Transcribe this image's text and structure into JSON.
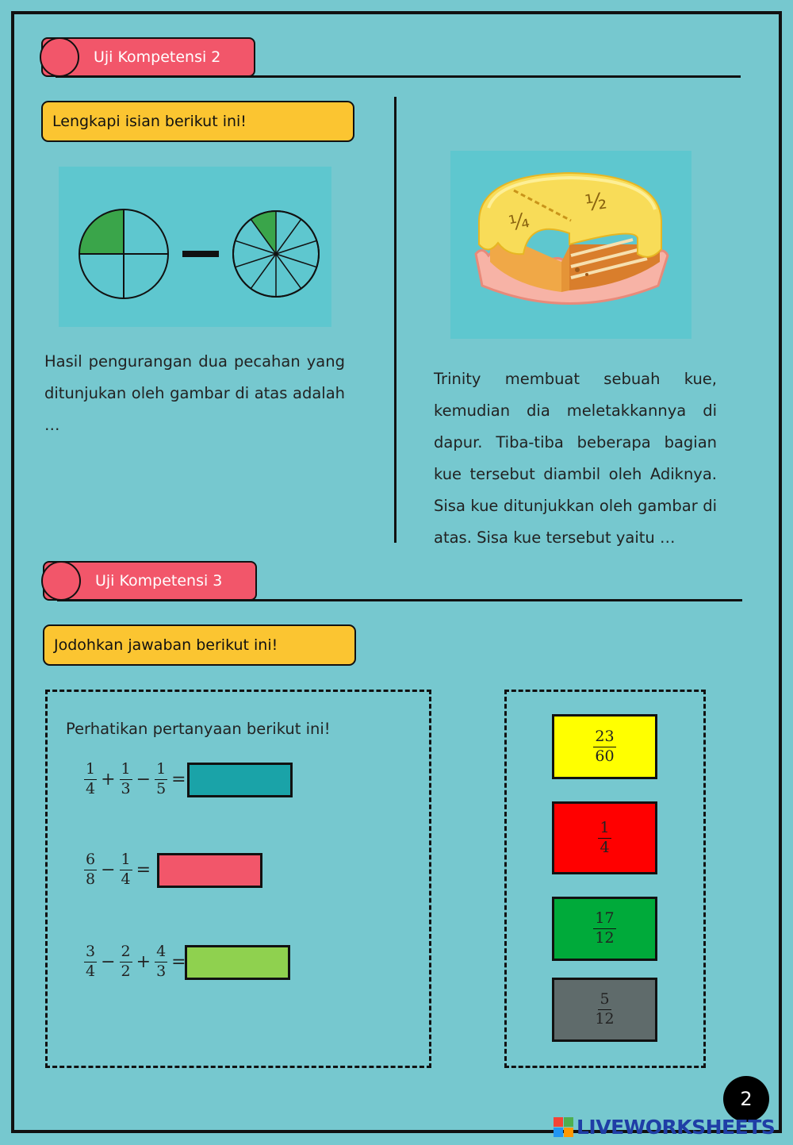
{
  "section2": {
    "title": "Uji Kompetensi 2",
    "instruction": "Lengkapi isian berikut ini!",
    "q1_text": "Hasil pengurangan dua pecahan yang ditunjukan oleh gambar di atas adalah …",
    "cake_labels": {
      "quarter": "¼",
      "half": "½"
    },
    "q2_text": "Trinity membuat sebuah kue, kemudian dia meletakkannya di dapur. Tiba-tiba beberapa bagian kue tersebut diambil oleh Adiknya. Sisa kue ditunjukkan oleh gambar di atas. Sisa kue tersebut yaitu …"
  },
  "section3": {
    "title": "Uji Kompetensi 3",
    "instruction": "Jodohkan jawaban berikut ini!",
    "prompt": "Perhatikan pertanyaan berikut ini!",
    "equations": [
      {
        "terms": [
          {
            "n": "1",
            "d": "4"
          },
          {
            "op": "+"
          },
          {
            "n": "1",
            "d": "3"
          },
          {
            "op": "−"
          },
          {
            "n": "1",
            "d": "5"
          }
        ],
        "eq": "=",
        "slot_color": "#1aa3a8"
      },
      {
        "terms": [
          {
            "n": "6",
            "d": "8"
          },
          {
            "op": "−"
          },
          {
            "n": "1",
            "d": "4"
          }
        ],
        "eq": "=",
        "slot_color": "#f2566a"
      },
      {
        "terms": [
          {
            "n": "3",
            "d": "4"
          },
          {
            "op": "−"
          },
          {
            "n": "2",
            "d": "2"
          },
          {
            "op": "+"
          },
          {
            "n": "4",
            "d": "3"
          }
        ],
        "eq": "=",
        "slot_color": "#8fd14f"
      }
    ],
    "answers": [
      {
        "n": "23",
        "d": "60",
        "color": "#ffff00"
      },
      {
        "n": "1",
        "d": "4",
        "color": "#ff0000"
      },
      {
        "n": "17",
        "d": "12",
        "color": "#00aa3a"
      },
      {
        "n": "5",
        "d": "12",
        "color": "#5f6b6b"
      }
    ]
  },
  "page_number": "2",
  "brand": {
    "name": "LIVEWORKSHEETS",
    "logo_letters": [
      "L",
      "I",
      "V",
      "E"
    ]
  },
  "colors": {
    "background": "#76c8cf",
    "pill": "#f2566a",
    "instruction_box": "#fbc531",
    "green_fill": "#3aa54a"
  }
}
